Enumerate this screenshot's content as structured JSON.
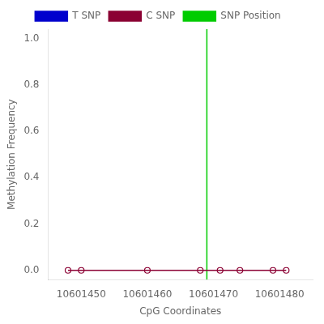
{
  "chart_data": {
    "type": "line",
    "xlabel": "CpG Coordinates",
    "ylabel": "Methylation Frequency",
    "xlim": [
      10601445,
      10601485
    ],
    "xticks": [
      10601450,
      10601460,
      10601470,
      10601480
    ],
    "ylim": [
      -0.04,
      1.04
    ],
    "yticks": [
      {
        "value": 0.0,
        "label": "0.0"
      },
      {
        "value": 0.2,
        "label": "0.2"
      },
      {
        "value": 0.4,
        "label": "0.4"
      },
      {
        "value": 0.6,
        "label": "0.6"
      },
      {
        "value": 0.8,
        "label": "0.8"
      },
      {
        "value": 1.0,
        "label": "1.0"
      }
    ],
    "grid": false,
    "legend": "top",
    "series": [
      {
        "name": "T SNP",
        "color": "#0000cd",
        "marker": "circle",
        "x": [],
        "values": []
      },
      {
        "name": "C SNP",
        "color": "#8b0033",
        "marker": "circle",
        "x": [
          10601448,
          10601450,
          10601460,
          10601468,
          10601471,
          10601474,
          10601479,
          10601481
        ],
        "values": [
          0.0,
          0.0,
          0.0,
          0.0,
          0.0,
          0.0,
          0.0,
          0.0
        ]
      },
      {
        "name": "SNP Position",
        "type": "vline",
        "color": "#00cc00",
        "x": 10601469
      }
    ]
  }
}
